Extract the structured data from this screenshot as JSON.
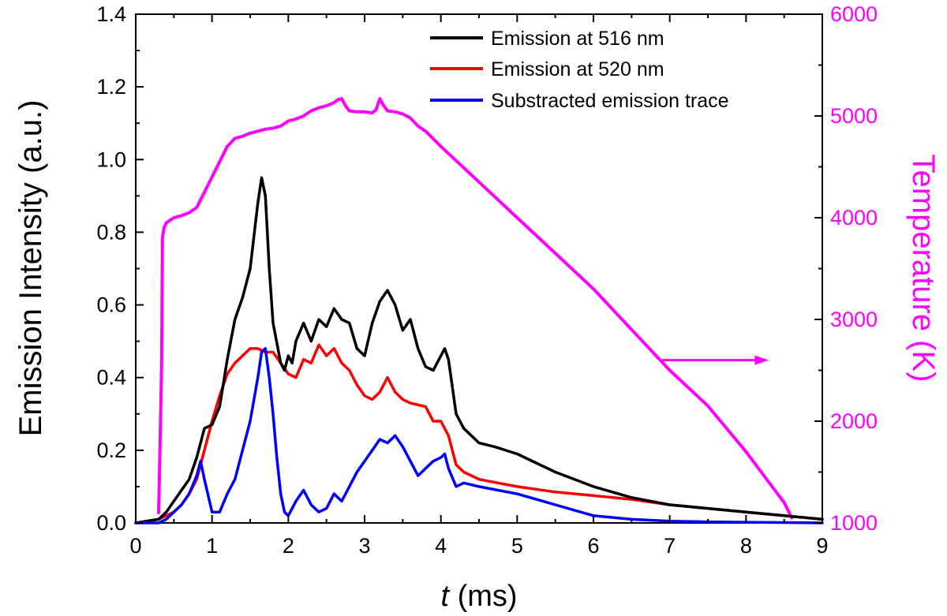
{
  "chart_data": {
    "type": "line",
    "xlabel_italic": "t",
    "xlabel_rest": " (ms)",
    "ylabel": "Emission Intensity (a.u.)",
    "y2label": "Temperature (K)",
    "xlim": [
      0,
      9
    ],
    "ylim": [
      0,
      1.4
    ],
    "y2lim": [
      1000,
      6000
    ],
    "xticks": [
      "0",
      "1",
      "2",
      "3",
      "4",
      "5",
      "6",
      "7",
      "8",
      "9"
    ],
    "yticks": [
      "0.0",
      "0.2",
      "0.4",
      "0.6",
      "0.8",
      "1.0",
      "1.2",
      "1.4"
    ],
    "y2ticks": [
      "1000",
      "2000",
      "3000",
      "4000",
      "5000",
      "6000"
    ],
    "colors": {
      "emission_516": "#000000",
      "emission_520": "#ff0000",
      "subtracted": "#0000ff",
      "temperature": "#ff00ff"
    },
    "legend_position": "top-right",
    "annotation": {
      "type": "arrow",
      "from": [
        6.9,
        2600
      ],
      "to": [
        8.3,
        2600
      ],
      "axis": "right",
      "color": "#ff00ff"
    },
    "series": [
      {
        "name": "Emission at 516 nm",
        "axis": "left",
        "color": "#000000",
        "x": [
          0,
          0.3,
          0.4,
          0.5,
          0.6,
          0.7,
          0.8,
          0.9,
          1.0,
          1.1,
          1.2,
          1.3,
          1.4,
          1.5,
          1.6,
          1.65,
          1.7,
          1.75,
          1.8,
          1.9,
          1.95,
          2.0,
          2.05,
          2.1,
          2.2,
          2.3,
          2.4,
          2.5,
          2.6,
          2.7,
          2.8,
          2.9,
          3.0,
          3.1,
          3.2,
          3.3,
          3.4,
          3.5,
          3.6,
          3.7,
          3.8,
          3.9,
          4.0,
          4.05,
          4.1,
          4.2,
          4.3,
          4.5,
          4.7,
          5.0,
          5.5,
          6.0,
          6.5,
          7.0,
          7.5,
          8.0,
          8.5,
          9.0
        ],
        "y": [
          0,
          0.01,
          0.03,
          0.06,
          0.09,
          0.12,
          0.18,
          0.26,
          0.27,
          0.32,
          0.45,
          0.56,
          0.62,
          0.7,
          0.88,
          0.95,
          0.9,
          0.7,
          0.55,
          0.44,
          0.42,
          0.46,
          0.44,
          0.5,
          0.55,
          0.5,
          0.56,
          0.54,
          0.59,
          0.56,
          0.55,
          0.48,
          0.46,
          0.55,
          0.61,
          0.64,
          0.6,
          0.53,
          0.56,
          0.48,
          0.43,
          0.42,
          0.46,
          0.48,
          0.45,
          0.3,
          0.26,
          0.22,
          0.21,
          0.19,
          0.14,
          0.1,
          0.07,
          0.05,
          0.04,
          0.03,
          0.02,
          0.01
        ]
      },
      {
        "name": "Emission at 520 nm",
        "axis": "left",
        "color": "#ff0000",
        "x": [
          0,
          0.3,
          0.4,
          0.5,
          0.6,
          0.7,
          0.8,
          0.9,
          1.0,
          1.1,
          1.2,
          1.3,
          1.4,
          1.5,
          1.6,
          1.7,
          1.8,
          1.9,
          2.0,
          2.1,
          2.2,
          2.3,
          2.4,
          2.5,
          2.6,
          2.7,
          2.8,
          2.9,
          3.0,
          3.1,
          3.2,
          3.3,
          3.4,
          3.5,
          3.6,
          3.8,
          3.9,
          4.0,
          4.1,
          4.2,
          4.3,
          4.5,
          5.0,
          5.5,
          6.0,
          6.5,
          7.0,
          7.5,
          8.0,
          8.5,
          9.0
        ],
        "y": [
          0,
          0.01,
          0.02,
          0.03,
          0.05,
          0.08,
          0.12,
          0.2,
          0.28,
          0.35,
          0.41,
          0.44,
          0.46,
          0.48,
          0.48,
          0.47,
          0.47,
          0.44,
          0.41,
          0.4,
          0.45,
          0.44,
          0.49,
          0.46,
          0.48,
          0.44,
          0.42,
          0.38,
          0.35,
          0.34,
          0.36,
          0.4,
          0.36,
          0.34,
          0.33,
          0.32,
          0.28,
          0.28,
          0.24,
          0.16,
          0.14,
          0.12,
          0.1,
          0.085,
          0.075,
          0.065,
          0.05,
          0.04,
          0.03,
          0.02,
          0.01
        ]
      },
      {
        "name": "Substracted emission trace",
        "axis": "left",
        "color": "#0000ff",
        "x": [
          0,
          0.3,
          0.4,
          0.5,
          0.6,
          0.7,
          0.8,
          0.85,
          0.9,
          1.0,
          1.1,
          1.2,
          1.3,
          1.4,
          1.5,
          1.6,
          1.65,
          1.7,
          1.75,
          1.8,
          1.85,
          1.9,
          1.95,
          2.0,
          2.1,
          2.2,
          2.3,
          2.4,
          2.5,
          2.6,
          2.7,
          2.8,
          2.9,
          3.0,
          3.1,
          3.2,
          3.3,
          3.4,
          3.5,
          3.6,
          3.7,
          3.8,
          3.9,
          4.0,
          4.05,
          4.1,
          4.2,
          4.3,
          4.5,
          5.0,
          5.5,
          6.0,
          6.5,
          7.0,
          7.5,
          8.0,
          8.5,
          9.0
        ],
        "y": [
          0,
          0.0,
          0.01,
          0.03,
          0.05,
          0.08,
          0.13,
          0.17,
          0.12,
          0.03,
          0.03,
          0.08,
          0.12,
          0.2,
          0.28,
          0.4,
          0.47,
          0.48,
          0.4,
          0.3,
          0.18,
          0.08,
          0.03,
          0.02,
          0.06,
          0.09,
          0.05,
          0.03,
          0.04,
          0.08,
          0.06,
          0.1,
          0.14,
          0.17,
          0.2,
          0.23,
          0.22,
          0.24,
          0.21,
          0.17,
          0.13,
          0.15,
          0.17,
          0.18,
          0.19,
          0.15,
          0.1,
          0.11,
          0.1,
          0.08,
          0.05,
          0.02,
          0.01,
          0.005,
          0.003,
          0.002,
          0.001,
          0.0
        ]
      },
      {
        "name": "Temperature",
        "axis": "right",
        "color": "#ff00ff",
        "x": [
          0.3,
          0.32,
          0.34,
          0.35,
          0.37,
          0.4,
          0.5,
          0.6,
          0.7,
          0.8,
          0.9,
          1.0,
          1.1,
          1.2,
          1.3,
          1.4,
          1.5,
          1.6,
          1.7,
          1.8,
          1.9,
          2.0,
          2.1,
          2.2,
          2.3,
          2.4,
          2.5,
          2.6,
          2.65,
          2.7,
          2.75,
          2.8,
          2.9,
          3.0,
          3.1,
          3.15,
          3.2,
          3.25,
          3.3,
          3.4,
          3.5,
          3.6,
          3.7,
          3.8,
          4.0,
          4.5,
          5.0,
          5.5,
          6.0,
          6.5,
          7.0,
          7.5,
          8.0,
          8.3,
          8.5,
          8.6
        ],
        "y": [
          1100,
          1800,
          2600,
          3800,
          3900,
          3950,
          4000,
          4020,
          4050,
          4100,
          4250,
          4400,
          4550,
          4700,
          4780,
          4800,
          4830,
          4850,
          4870,
          4880,
          4900,
          4950,
          4970,
          5000,
          5050,
          5080,
          5100,
          5130,
          5160,
          5170,
          5100,
          5050,
          5040,
          5040,
          5030,
          5060,
          5170,
          5100,
          5050,
          5040,
          5020,
          4980,
          4900,
          4850,
          4700,
          4350,
          4000,
          3650,
          3300,
          2900,
          2500,
          2150,
          1700,
          1400,
          1200,
          1050
        ]
      }
    ]
  }
}
